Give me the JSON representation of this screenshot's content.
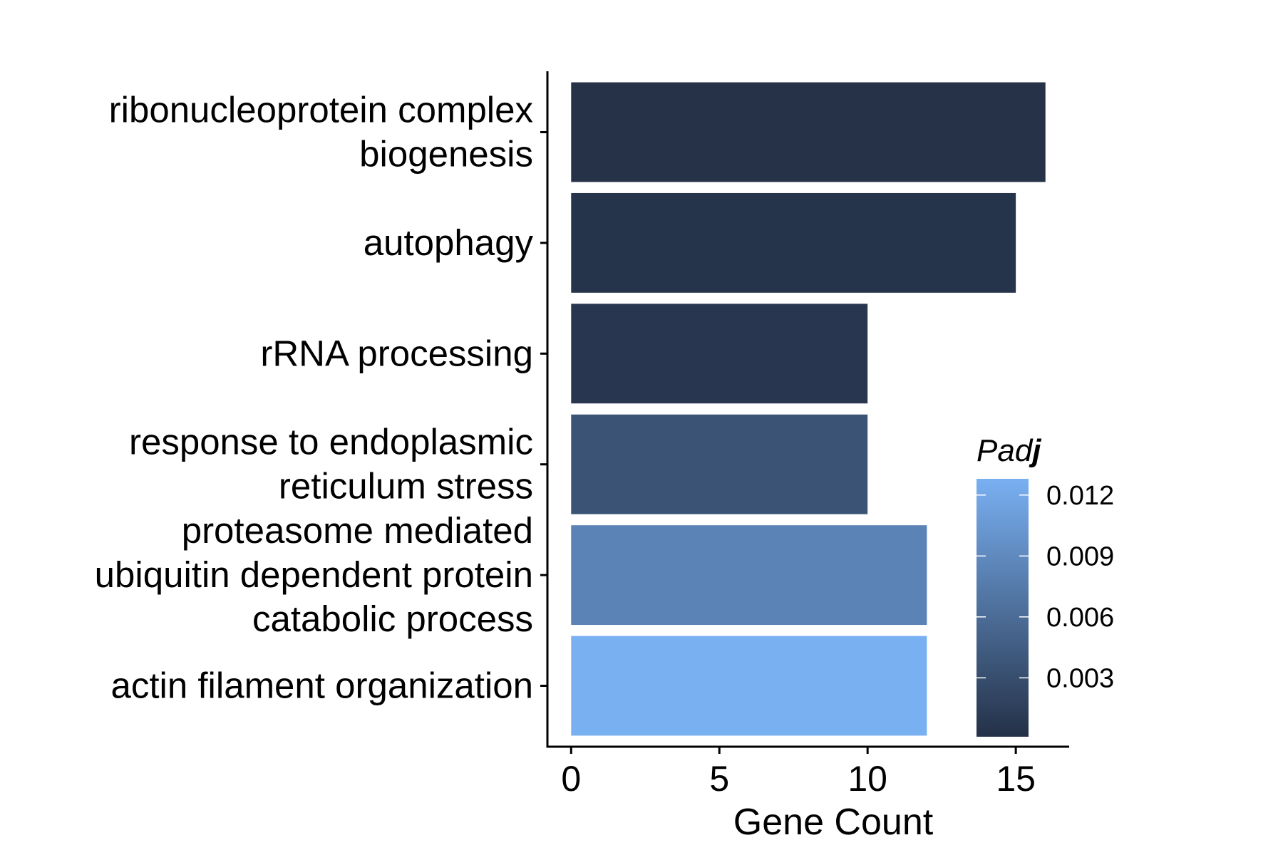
{
  "chart_data": {
    "type": "bar",
    "orientation": "horizontal",
    "categories": [
      [
        "ribonucleoprotein complex",
        "biogenesis"
      ],
      [
        "autophagy"
      ],
      [
        "rRNA processing"
      ],
      [
        "response to endoplasmic",
        "reticulum stress"
      ],
      [
        "proteasome mediated",
        "ubiquitin dependent protein",
        "catabolic process"
      ],
      [
        "actin filament organization"
      ]
    ],
    "values": [
      16,
      15,
      10,
      10,
      12,
      12
    ],
    "padj": [
      0.0002,
      0.0004,
      0.0007,
      0.0036,
      0.0083,
      0.0128
    ],
    "xlabel": "Gene Count",
    "ylabel": "",
    "xlim": [
      -0.8,
      16.8
    ],
    "xticks": [
      0,
      5,
      10,
      15
    ],
    "legend": {
      "title_prefix": "Pad",
      "title_suffix": "j",
      "ticks": [
        0.003,
        0.006,
        0.009,
        0.012
      ],
      "tick_labels": [
        "0.003",
        "0.006",
        "0.009",
        "0.012"
      ],
      "range": [
        0.0001,
        0.0128
      ],
      "colors": {
        "low": "#243147",
        "high": "#79b0f2"
      },
      "placement": "right"
    },
    "grid": false
  }
}
